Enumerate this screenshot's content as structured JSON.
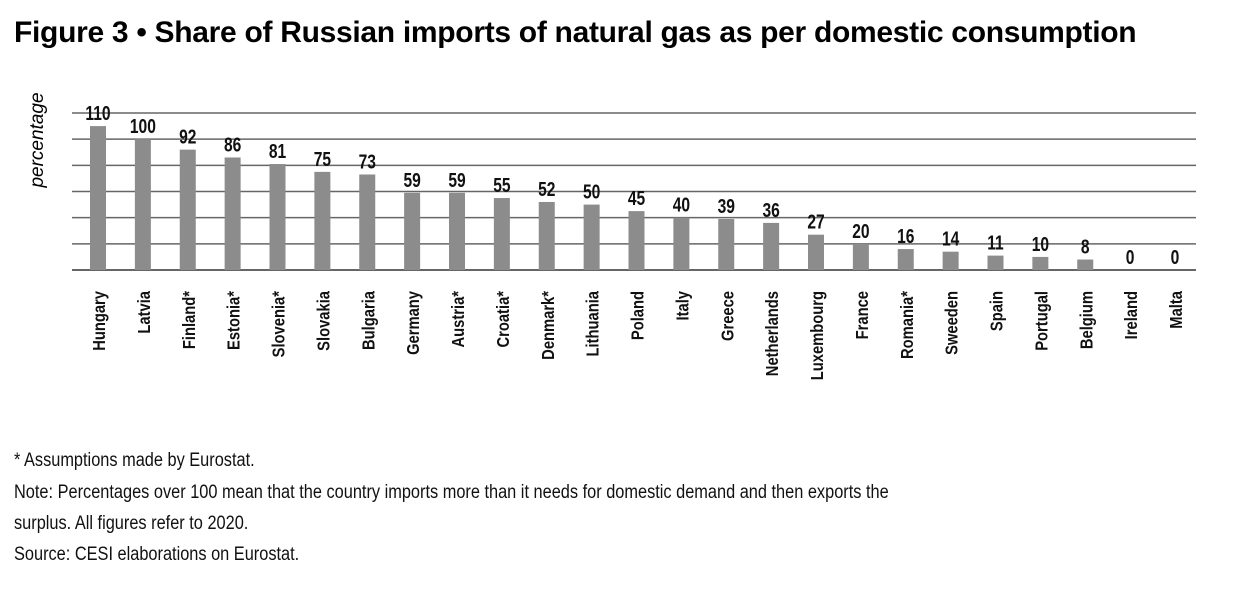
{
  "figure": {
    "title": "Figure 3 • Share of Russian imports of natural gas as per domestic consumption",
    "footnotes": [
      "* Assumptions made by Eurostat.",
      "Note: Percentages over 100 mean that the country imports more than it needs for domestic demand and then exports the",
      "surplus. All figures refer to 2020.",
      "Source: CESI elaborations on Eurostat."
    ]
  },
  "chart_data": {
    "type": "bar",
    "title": "Figure 3 • Share of Russian imports of natural gas as per domestic consumption",
    "ylabel": "percentage",
    "xlabel": "",
    "ylim": [
      0,
      120
    ],
    "grid": true,
    "categories": [
      "Hungary",
      "Latvia",
      "Finland*",
      "Estonia*",
      "Slovenia*",
      "Slovakia",
      "Bulgaria",
      "Germany",
      "Austria*",
      "Croatia*",
      "Denmark*",
      "Lithuania",
      "Poland",
      "Italy",
      "Greece",
      "Netherlands",
      "Luxembourg",
      "France",
      "Romania*",
      "Sweeden",
      "Spain",
      "Portugal",
      "Belgium",
      "Ireland",
      "Malta"
    ],
    "values": [
      110,
      100,
      92,
      86,
      81,
      75,
      73,
      59,
      59,
      55,
      52,
      50,
      45,
      40,
      39,
      36,
      27,
      20,
      16,
      14,
      11,
      10,
      8,
      0,
      0
    ],
    "bar_color": "#8c8c8c",
    "grid_color": "#666666"
  }
}
